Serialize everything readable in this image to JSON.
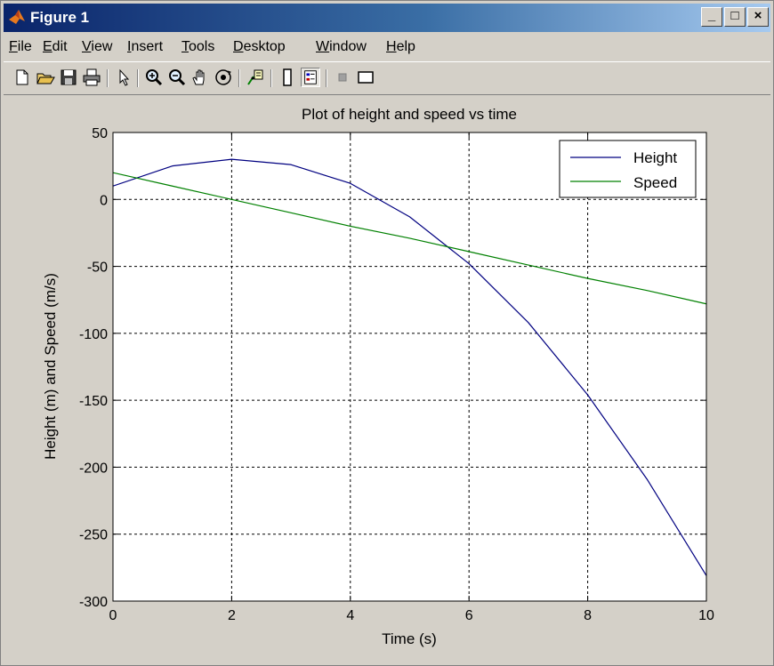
{
  "window": {
    "title": "Figure 1",
    "controls": {
      "minimize": "_",
      "maximize": "□",
      "close": "×"
    }
  },
  "menubar": {
    "items": [
      {
        "label": "File",
        "accel": "F",
        "rest": "ile"
      },
      {
        "label": "Edit",
        "accel": "E",
        "rest": "dit"
      },
      {
        "label": "View",
        "accel": "V",
        "rest": "iew"
      },
      {
        "label": "Insert",
        "accel": "I",
        "rest": "nsert"
      },
      {
        "label": "Tools",
        "accel": "T",
        "rest": "ools"
      },
      {
        "label": "Desktop",
        "accel": "D",
        "rest": "esktop"
      },
      {
        "label": "Window",
        "accel": "W",
        "rest": "indow"
      },
      {
        "label": "Help",
        "accel": "H",
        "rest": "elp"
      }
    ]
  },
  "toolbar": {
    "buttons": [
      "new-file-icon",
      "open-file-icon",
      "save-icon",
      "print-icon",
      "edit-plot-arrow-icon",
      "zoom-in-icon",
      "zoom-out-icon",
      "pan-hand-icon",
      "rotate-3d-icon",
      "data-cursor-icon",
      "colorbar-icon",
      "legend-icon",
      "hide-plot-tools-icon",
      "show-plot-tools-icon"
    ]
  },
  "chart_data": {
    "type": "line",
    "title": "Plot of height and speed vs time",
    "xlabel": "Time (s)",
    "ylabel": "Height (m) and Speed (m/s)",
    "xlim": [
      0,
      10
    ],
    "ylim": [
      -300,
      50
    ],
    "xticks": [
      0,
      2,
      4,
      6,
      8,
      10
    ],
    "yticks": [
      50,
      0,
      -50,
      -100,
      -150,
      -200,
      -250,
      -300
    ],
    "grid": true,
    "legend_position": "top-right",
    "x": [
      0,
      1,
      2,
      3,
      4,
      5,
      6,
      7,
      8,
      9,
      10
    ],
    "series": [
      {
        "name": "Height",
        "color": "#000080",
        "values": [
          10,
          25,
          30,
          26,
          12,
          -13,
          -48,
          -92,
          -146,
          -209,
          -281
        ]
      },
      {
        "name": "Speed",
        "color": "#008000",
        "values": [
          20,
          10,
          0,
          -10,
          -20,
          -29,
          -39,
          -49,
          -59,
          -68,
          -78
        ]
      }
    ]
  }
}
